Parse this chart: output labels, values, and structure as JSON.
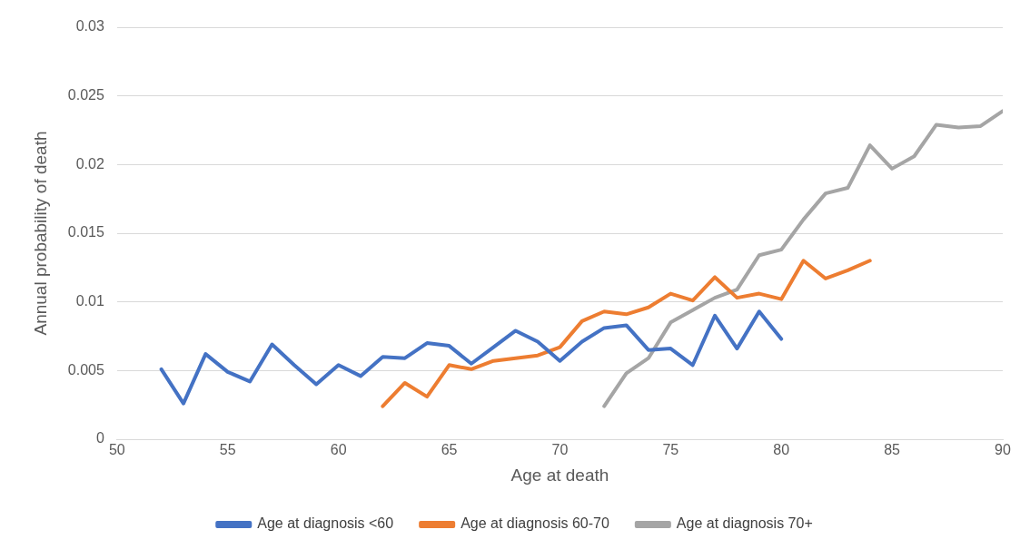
{
  "chart_data": {
    "type": "line",
    "xlabel": "Age at death",
    "ylabel": "Annual probability of death",
    "xlim": [
      50,
      90
    ],
    "xticks": [
      50,
      55,
      60,
      65,
      70,
      75,
      80,
      85,
      90
    ],
    "ylim": [
      0,
      0.03
    ],
    "yticks": [
      0,
      0.005,
      0.01,
      0.015,
      0.02,
      0.025,
      0.03
    ],
    "grid": "y",
    "legend": "bottom",
    "marker": "none",
    "series": [
      {
        "name": "Age at diagnosis <60",
        "color": "#4472c4",
        "x": [
          52,
          53,
          54,
          55,
          56,
          57,
          58,
          59,
          60,
          61,
          62,
          63,
          64,
          65,
          66,
          67,
          68,
          69,
          70,
          71,
          72,
          73,
          74,
          75,
          76,
          77,
          78,
          79,
          80
        ],
        "values": [
          0.0051,
          0.0026,
          0.0062,
          0.0049,
          0.0042,
          0.0069,
          0.0054,
          0.004,
          0.0054,
          0.0046,
          0.006,
          0.0059,
          0.007,
          0.0068,
          0.0055,
          0.0067,
          0.0079,
          0.0071,
          0.0057,
          0.0071,
          0.0081,
          0.0083,
          0.0065,
          0.0066,
          0.0054,
          0.009,
          0.0066,
          0.0093,
          0.0073
        ]
      },
      {
        "name": "Age at diagnosis 60-70",
        "color": "#ed7d31",
        "x": [
          62,
          63,
          64,
          65,
          66,
          67,
          68,
          69,
          70,
          71,
          72,
          73,
          74,
          75,
          76,
          77,
          78,
          79,
          80,
          81,
          82,
          83,
          84
        ],
        "values": [
          0.0024,
          0.0041,
          0.0031,
          0.0054,
          0.0051,
          0.0057,
          0.0059,
          0.0061,
          0.0067,
          0.0086,
          0.0093,
          0.0091,
          0.0096,
          0.0106,
          0.0101,
          0.0118,
          0.0103,
          0.0106,
          0.0102,
          0.013,
          0.0117,
          0.0123,
          0.013
        ]
      },
      {
        "name": "Age at diagnosis 70+",
        "color": "#a5a5a5",
        "x": [
          72,
          73,
          74,
          75,
          76,
          77,
          78,
          79,
          80,
          81,
          82,
          83,
          84,
          85,
          86,
          87,
          88,
          89,
          90
        ],
        "values": [
          0.0024,
          0.0048,
          0.0059,
          0.0085,
          0.0094,
          0.0103,
          0.0109,
          0.0134,
          0.0138,
          0.016,
          0.0179,
          0.0183,
          0.0214,
          0.0197,
          0.0206,
          0.0229,
          0.0227,
          0.0228,
          0.0239
        ]
      }
    ]
  }
}
